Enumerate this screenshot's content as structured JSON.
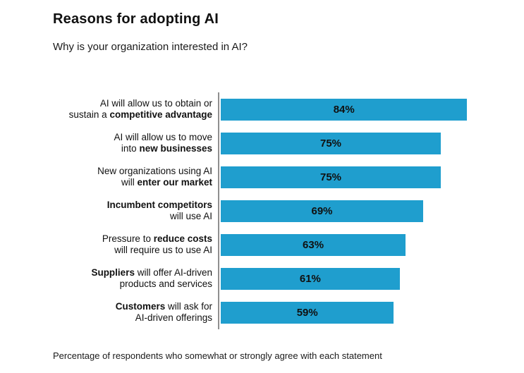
{
  "page": {
    "title": "Reasons for adopting AI",
    "subtitle": "Why is your organization interested in AI?",
    "footnote": "Percentage of respondents who somewhat or strongly agree with each statement"
  },
  "chart_data": {
    "type": "bar",
    "orientation": "horizontal",
    "title": "Reasons for adopting AI",
    "subtitle": "Why is your organization interested in AI?",
    "footnote": "Percentage of respondents who somewhat or strongly agree with each statement",
    "value_suffix": "%",
    "xlim": [
      0,
      100
    ],
    "bar_color": "#1f9ece",
    "axis_line_color": "#8f8f8f",
    "legend": "none",
    "grid": false,
    "categories": [
      "AI will allow us to obtain or sustain a competitive advantage",
      "AI will allow us to move into new businesses",
      "New organizations using AI will enter our market",
      "Incumbent competitors will use AI",
      "Pressure to reduce costs will require us to use AI",
      "Suppliers will offer AI-driven products and services",
      "Customers will ask for AI-driven offerings"
    ],
    "values": [
      84,
      75,
      75,
      69,
      63,
      61,
      59
    ],
    "rows": [
      {
        "value": 84,
        "display": "84%",
        "label_lines": [
          [
            {
              "text": "AI will allow us to obtain or",
              "bold": false
            }
          ],
          [
            {
              "text": "sustain a ",
              "bold": false
            },
            {
              "text": "competitive advantage",
              "bold": true
            }
          ]
        ]
      },
      {
        "value": 75,
        "display": "75%",
        "label_lines": [
          [
            {
              "text": "AI will allow us to move",
              "bold": false
            }
          ],
          [
            {
              "text": "into ",
              "bold": false
            },
            {
              "text": "new businesses",
              "bold": true
            }
          ]
        ]
      },
      {
        "value": 75,
        "display": "75%",
        "label_lines": [
          [
            {
              "text": "New organizations using AI",
              "bold": false
            }
          ],
          [
            {
              "text": "will ",
              "bold": false
            },
            {
              "text": "enter our market",
              "bold": true
            }
          ]
        ]
      },
      {
        "value": 69,
        "display": "69%",
        "label_lines": [
          [
            {
              "text": "Incumbent competitors",
              "bold": true
            }
          ],
          [
            {
              "text": "will use AI",
              "bold": false
            }
          ]
        ]
      },
      {
        "value": 63,
        "display": "63%",
        "label_lines": [
          [
            {
              "text": "Pressure to ",
              "bold": false
            },
            {
              "text": "reduce costs",
              "bold": true
            }
          ],
          [
            {
              "text": "will require us to use AI",
              "bold": false
            }
          ]
        ]
      },
      {
        "value": 61,
        "display": "61%",
        "label_lines": [
          [
            {
              "text": "Suppliers",
              "bold": true
            },
            {
              "text": " will offer AI-driven",
              "bold": false
            }
          ],
          [
            {
              "text": "products and services",
              "bold": false
            }
          ]
        ]
      },
      {
        "value": 59,
        "display": "59%",
        "label_lines": [
          [
            {
              "text": "Customers",
              "bold": true
            },
            {
              "text": " will ask for",
              "bold": false
            }
          ],
          [
            {
              "text": "AI-driven offerings",
              "bold": false
            }
          ]
        ]
      }
    ]
  }
}
